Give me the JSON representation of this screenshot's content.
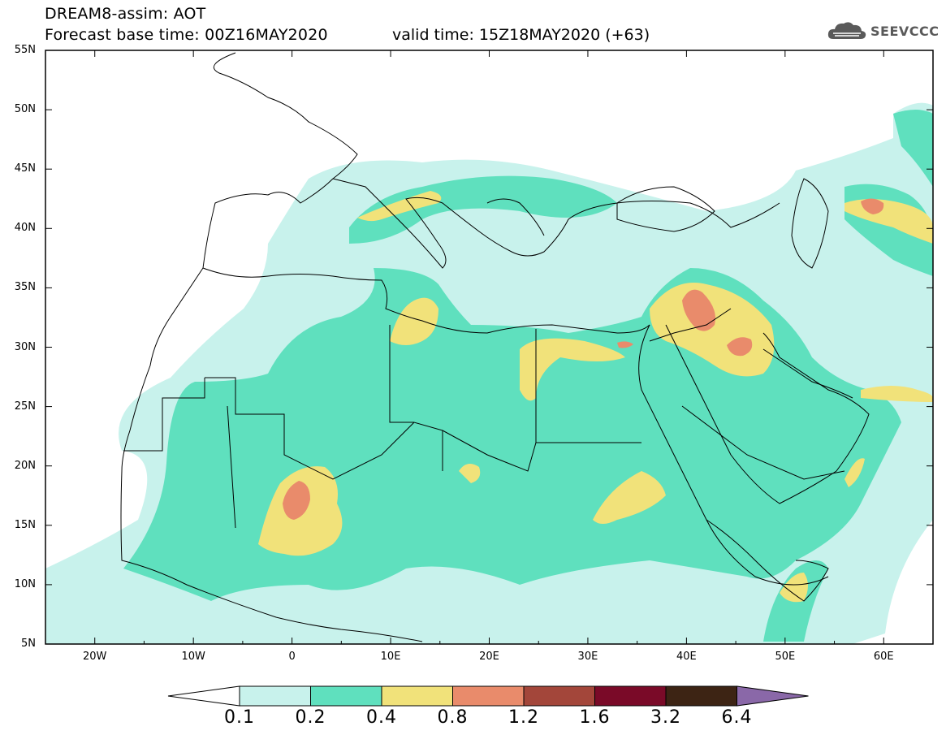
{
  "header": {
    "title_line1": "DREAM8-assim: AOT",
    "title_line2": "Forecast base time: 00Z16MAY2020",
    "valid_time": "valid time: 15Z18MAY2020 (+63)",
    "logo_text": "SEEVCCC"
  },
  "map": {
    "lat_labels": [
      "55N",
      "50N",
      "45N",
      "40N",
      "35N",
      "30N",
      "25N",
      "20N",
      "15N",
      "10N",
      "5N"
    ],
    "lon_labels": [
      "20W",
      "10W",
      "0",
      "10E",
      "20E",
      "30E",
      "40E",
      "50E",
      "60E"
    ],
    "extent": {
      "lon_min": -25,
      "lon_max": 65,
      "lat_min": 5,
      "lat_max": 55
    }
  },
  "colorbar": {
    "levels": [
      "0.1",
      "0.2",
      "0.4",
      "0.8",
      "1.2",
      "1.6",
      "3.2",
      "6.4"
    ],
    "colors": [
      "#c8f2ec",
      "#5fe0be",
      "#f1e27a",
      "#e98b6b",
      "#a3463a",
      "#7a0a28",
      "#3d2414",
      "#8a68a8"
    ]
  }
}
